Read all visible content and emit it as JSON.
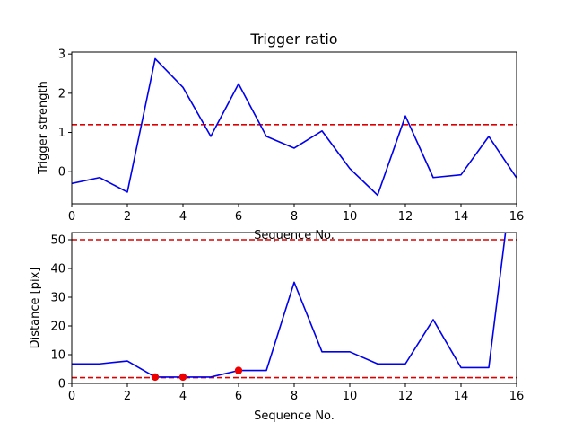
{
  "chart_data": [
    {
      "type": "line",
      "title": "Trigger ratio",
      "xlabel": "Sequence No.",
      "ylabel": "Trigger strength",
      "xlim": [
        0,
        16
      ],
      "ylim": [
        -0.82,
        3.05
      ],
      "xticks": [
        0,
        2,
        4,
        6,
        8,
        10,
        12,
        14,
        16
      ],
      "xtick_labels": [
        "0",
        "2",
        "4",
        "6",
        "8",
        "10",
        "12",
        "14",
        "16"
      ],
      "yticks": [
        0,
        1,
        2,
        3
      ],
      "ytick_labels": [
        "0",
        "1",
        "2",
        "3"
      ],
      "grid": false,
      "series": [
        {
          "color": "#0000ee",
          "x": [
            0,
            1,
            2,
            3,
            4,
            5,
            6,
            7,
            8,
            9,
            10,
            11,
            12,
            13,
            14,
            15,
            16
          ],
          "y": [
            -0.3,
            -0.15,
            -0.52,
            2.88,
            2.15,
            0.9,
            2.24,
            0.9,
            0.6,
            1.04,
            0.08,
            -0.6,
            1.42,
            -0.15,
            -0.08,
            0.9,
            -0.16
          ]
        }
      ],
      "hlines": [
        {
          "y": 1.2,
          "color": "#dd0000",
          "style": "dashed"
        }
      ]
    },
    {
      "type": "line",
      "title": "",
      "xlabel": "Sequence No.",
      "ylabel": "Distance [pix]",
      "xlim": [
        0,
        16
      ],
      "ylim": [
        0,
        52.5
      ],
      "xticks": [
        0,
        2,
        4,
        6,
        8,
        10,
        12,
        14,
        16
      ],
      "xtick_labels": [
        "0",
        "2",
        "4",
        "6",
        "8",
        "10",
        "12",
        "14",
        "16"
      ],
      "yticks": [
        0,
        10,
        20,
        30,
        40,
        50
      ],
      "ytick_labels": [
        "0",
        "10",
        "20",
        "30",
        "40",
        "50"
      ],
      "grid": false,
      "series": [
        {
          "color": "#0000ee",
          "x": [
            0,
            1,
            2,
            3,
            4,
            5,
            6,
            7,
            8,
            9,
            10,
            11,
            12,
            13,
            14,
            15,
            15.6
          ],
          "y": [
            6.8,
            6.8,
            7.8,
            2.2,
            2.2,
            2.2,
            4.5,
            4.5,
            35.2,
            11,
            11,
            6.8,
            6.8,
            22.2,
            5.5,
            5.5,
            52.5
          ]
        }
      ],
      "markers": {
        "color": "#ee0000",
        "x": [
          3,
          4,
          6
        ],
        "y": [
          2.2,
          2.2,
          4.5
        ]
      },
      "hlines": [
        {
          "y": 50,
          "color": "#dd0000",
          "style": "dashed"
        },
        {
          "y": 2,
          "color": "#dd0000",
          "style": "dashed"
        }
      ]
    }
  ]
}
